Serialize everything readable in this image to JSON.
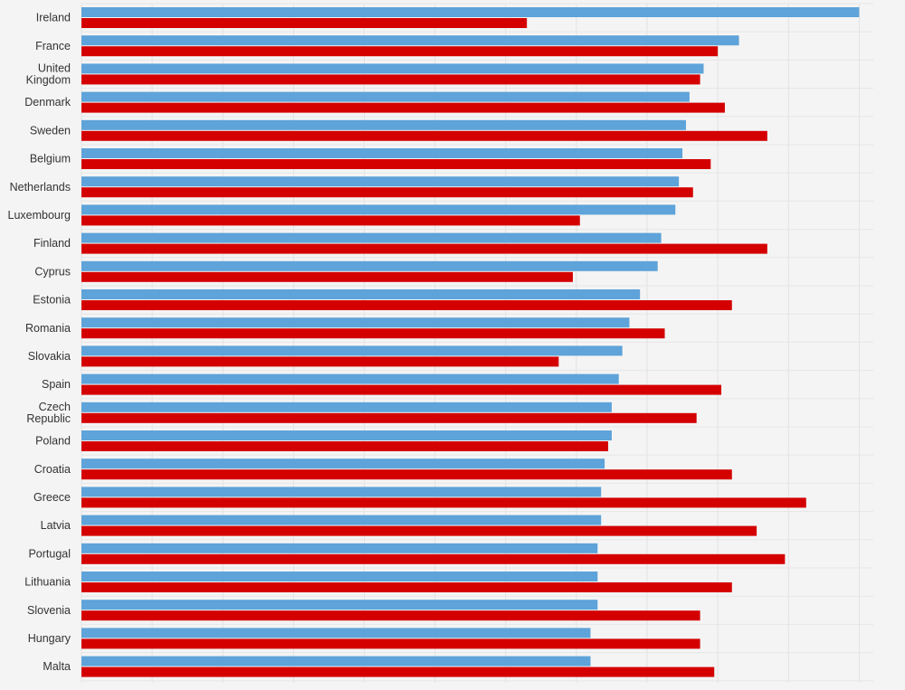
{
  "chart_data": {
    "type": "bar",
    "orientation": "horizontal",
    "grid": true,
    "categories": [
      "Ireland",
      "France",
      "United Kingdom",
      "Denmark",
      "Sweden",
      "Belgium",
      "Netherlands",
      "Luxembourg",
      "Finland",
      "Cyprus",
      "Estonia",
      "Romania",
      "Slovakia",
      "Spain",
      "Czech Republic",
      "Poland",
      "Croatia",
      "Greece",
      "Latvia",
      "Portugal",
      "Lithuania",
      "Slovenia",
      "Hungary",
      "Malta"
    ],
    "xlim": [
      0,
      112
    ],
    "series": [
      {
        "color": "#5ea3d9",
        "values": [
          110,
          93,
          88,
          86,
          85.5,
          85,
          84.5,
          84,
          82,
          81.5,
          79,
          77.5,
          76.5,
          76,
          75,
          75,
          74,
          73.5,
          73.5,
          73,
          73,
          73,
          72,
          72
        ]
      },
      {
        "color": "#d40000",
        "values": [
          63,
          90,
          87.5,
          91,
          97,
          89,
          86.5,
          70.5,
          97,
          69.5,
          92,
          82.5,
          67.5,
          90.5,
          87,
          74.5,
          92,
          102.5,
          95.5,
          99.5,
          92,
          87.5,
          87.5,
          89.5
        ]
      }
    ]
  }
}
